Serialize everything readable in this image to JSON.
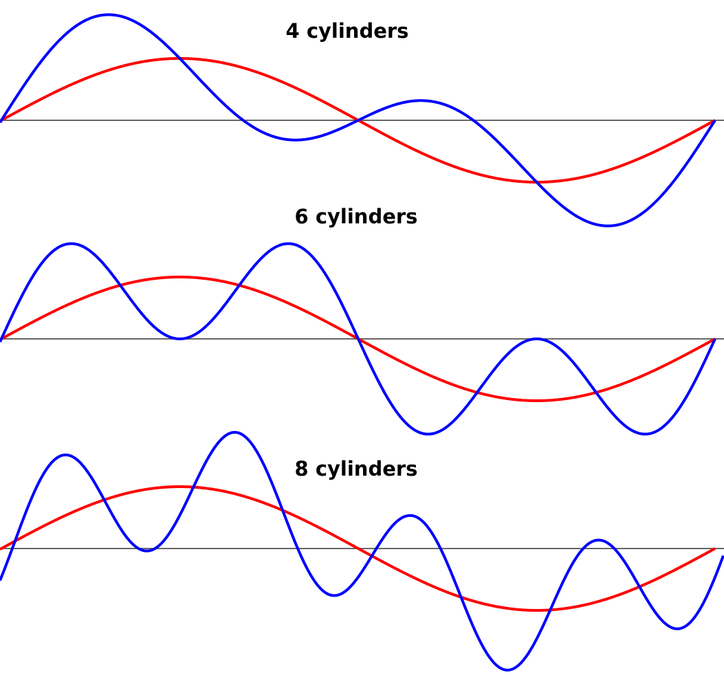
{
  "panels": [
    {
      "title": "4 cylinders"
    },
    {
      "title": "6 cylinders"
    },
    {
      "title": "8 cylinders"
    }
  ]
}
